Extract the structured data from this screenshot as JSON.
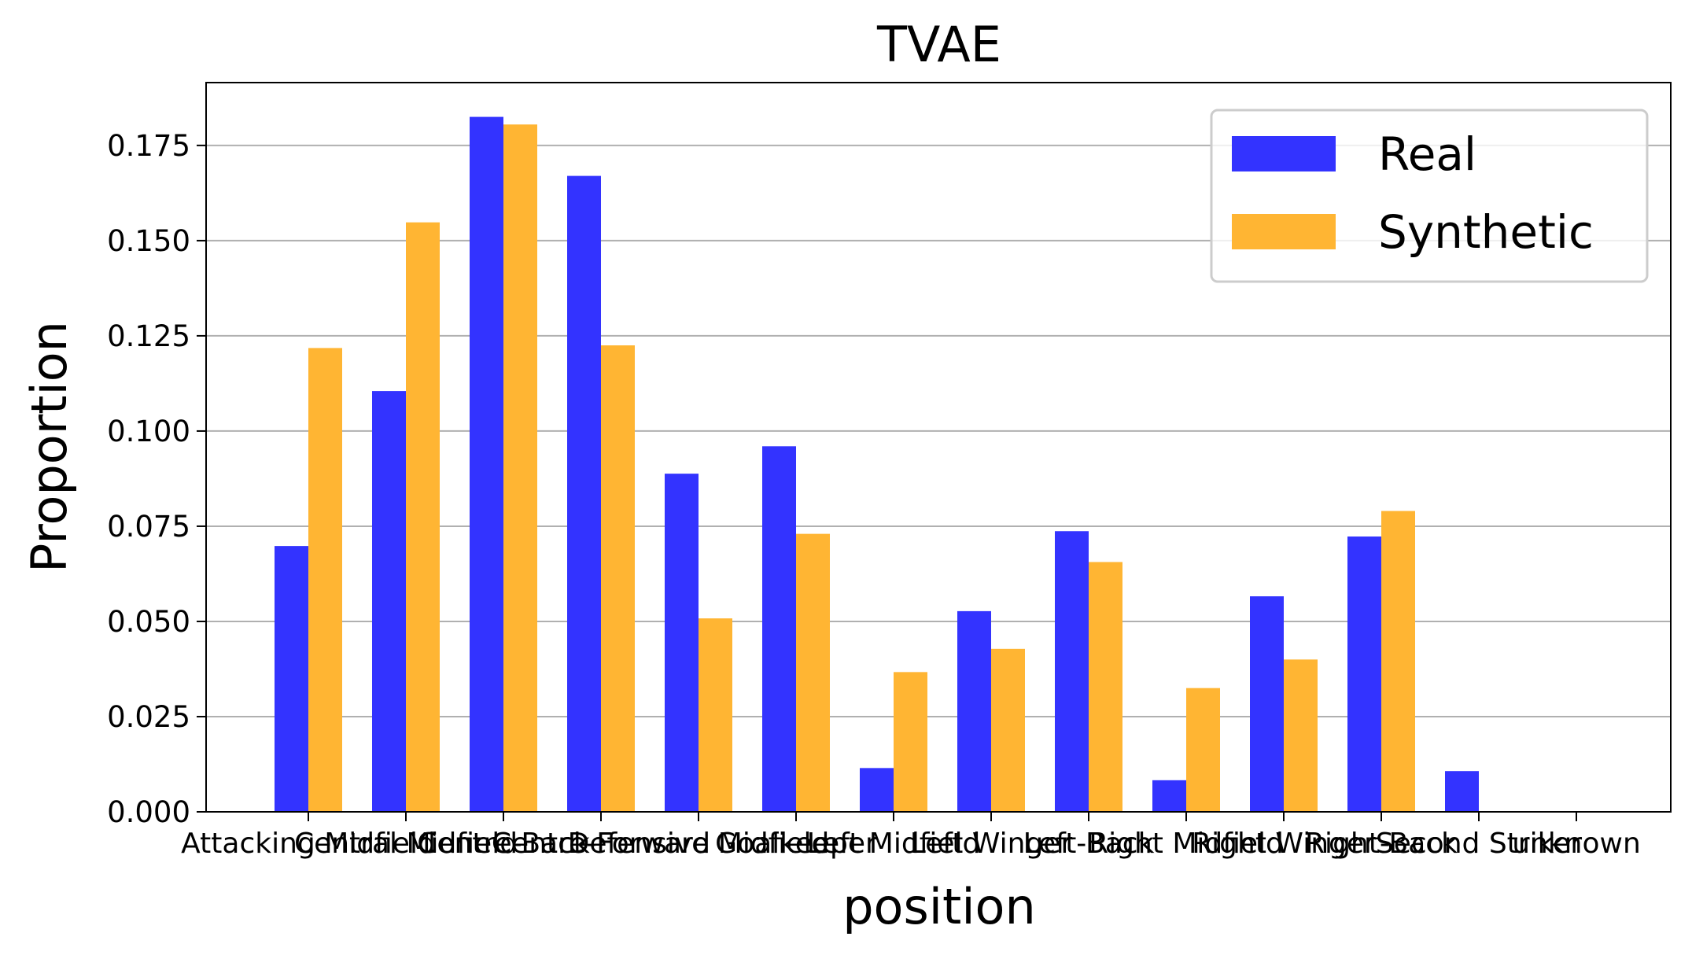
{
  "chart_data": {
    "type": "bar",
    "title": "TVAE",
    "xlabel": "position",
    "ylabel": "Proportion",
    "categories": [
      "Attacking Midfield",
      "Central Midfield",
      "Centre-Back",
      "Centre-Forward",
      "Defensive Midfield",
      "Goalkeeper",
      "Left Midfield",
      "Left Winger",
      "Left-Back",
      "Right Midfield",
      "Right Winger",
      "Right-Back",
      "Second Striker",
      "unknown"
    ],
    "series": [
      {
        "name": "Real",
        "color": "#3333ff",
        "values": [
          0.0698,
          0.1105,
          0.1825,
          0.167,
          0.0888,
          0.096,
          0.0115,
          0.0527,
          0.0737,
          0.0083,
          0.0566,
          0.0723,
          0.0107,
          0.0
        ]
      },
      {
        "name": "Synthetic",
        "color": "#ffb533",
        "values": [
          0.1218,
          0.1548,
          0.1805,
          0.1225,
          0.0508,
          0.073,
          0.0367,
          0.0428,
          0.0656,
          0.0325,
          0.04,
          0.079,
          0.0,
          0.0
        ]
      }
    ],
    "ylim": [
      0,
      0.1915
    ],
    "yticks": [
      "0.000",
      "0.025",
      "0.050",
      "0.075",
      "0.100",
      "0.125",
      "0.150",
      "0.175"
    ],
    "grid": "y",
    "legend": "top-right"
  }
}
